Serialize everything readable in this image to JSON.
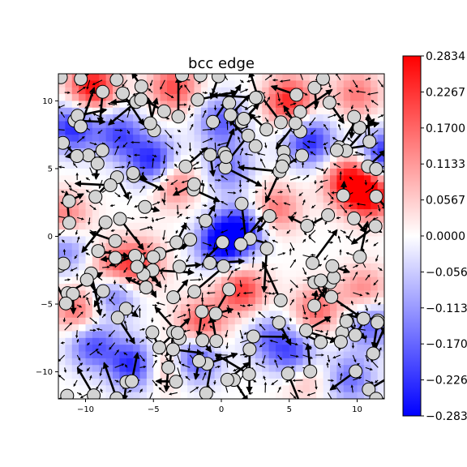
{
  "chart_data": {
    "type": "heatmap",
    "title": "bcc edge",
    "xlabel": "",
    "ylabel": "",
    "xlim": [
      -12,
      12
    ],
    "ylim": [
      -12,
      12
    ],
    "x_ticks": [
      -10,
      -5,
      0,
      5,
      10
    ],
    "y_ticks": [
      -10,
      -5,
      0,
      5,
      10
    ],
    "x_tick_labels": [
      "−10",
      "−5",
      "0",
      "5",
      "10"
    ],
    "y_tick_labels": [
      "−10",
      "−5",
      "0",
      "5",
      "10"
    ],
    "grid": false,
    "colormap": "bwr",
    "color_range": [
      -0.2834,
      0.2834
    ],
    "colorbar_ticks": [
      0.2834,
      0.2267,
      0.17,
      0.1133,
      0.0567,
      0.0,
      -0.0567,
      -0.1133,
      -0.17,
      -0.2267,
      -0.2834
    ],
    "colorbar_tick_labels": [
      "0.2834",
      "0.2267",
      "0.1700",
      "0.1133",
      "0.0567",
      "0.0000",
      "−0.0567",
      "−0.1133",
      "−0.1700",
      "−0.2267",
      "−0.2834"
    ],
    "field_hotspots": [
      {
        "x": -9.5,
        "y": 11.0,
        "value": 0.28
      },
      {
        "x": -3.5,
        "y": 11.0,
        "value": 0.2
      },
      {
        "x": 5.0,
        "y": 10.0,
        "value": 0.25
      },
      {
        "x": 9.5,
        "y": 4.0,
        "value": 0.28
      },
      {
        "x": 11.0,
        "y": 3.0,
        "value": 0.26
      },
      {
        "x": 10.0,
        "y": 10.5,
        "value": 0.15
      },
      {
        "x": -3.5,
        "y": 4.0,
        "value": 0.17
      },
      {
        "x": 4.0,
        "y": 2.0,
        "value": 0.16
      },
      {
        "x": -8.0,
        "y": -2.5,
        "value": 0.2
      },
      {
        "x": -6.0,
        "y": -2.0,
        "value": 0.18
      },
      {
        "x": 1.5,
        "y": -4.0,
        "value": 0.22
      },
      {
        "x": -1.5,
        "y": -6.5,
        "value": 0.2
      },
      {
        "x": 7.0,
        "y": -5.5,
        "value": 0.17
      },
      {
        "x": -10.5,
        "y": -5.5,
        "value": 0.18
      },
      {
        "x": -11.5,
        "y": 1.5,
        "value": 0.15
      },
      {
        "x": 6.0,
        "y": -10.0,
        "value": 0.17
      },
      {
        "x": -4.0,
        "y": -9.5,
        "value": 0.14
      },
      {
        "x": 10.5,
        "y": -4.0,
        "value": 0.14
      },
      {
        "x": -11.0,
        "y": 8.0,
        "value": -0.24
      },
      {
        "x": -7.5,
        "y": 7.5,
        "value": -0.2
      },
      {
        "x": -5.0,
        "y": 5.5,
        "value": -0.26
      },
      {
        "x": 0.0,
        "y": -0.5,
        "value": -0.28
      },
      {
        "x": 1.5,
        "y": 0.5,
        "value": -0.24
      },
      {
        "x": -8.0,
        "y": -4.0,
        "value": -0.22
      },
      {
        "x": -9.5,
        "y": -8.0,
        "value": -0.2
      },
      {
        "x": -6.5,
        "y": -9.5,
        "value": -0.25
      },
      {
        "x": -2.0,
        "y": -9.0,
        "value": -0.24
      },
      {
        "x": 5.5,
        "y": -9.0,
        "value": -0.26
      },
      {
        "x": 12.0,
        "y": 6.0,
        "value": -0.25
      },
      {
        "x": 6.5,
        "y": 7.0,
        "value": -0.24
      },
      {
        "x": 0.0,
        "y": 8.5,
        "value": -0.18
      },
      {
        "x": 11.0,
        "y": -6.5,
        "value": -0.18
      },
      {
        "x": 9.5,
        "y": -10.5,
        "value": -0.16
      },
      {
        "x": 0.5,
        "y": 5.0,
        "value": -0.15
      },
      {
        "x": -11.5,
        "y": -1.0,
        "value": -0.14
      },
      {
        "x": 3.5,
        "y": -7.5,
        "value": -0.14
      }
    ],
    "atoms_seed": 7,
    "atoms_count": 165
  }
}
